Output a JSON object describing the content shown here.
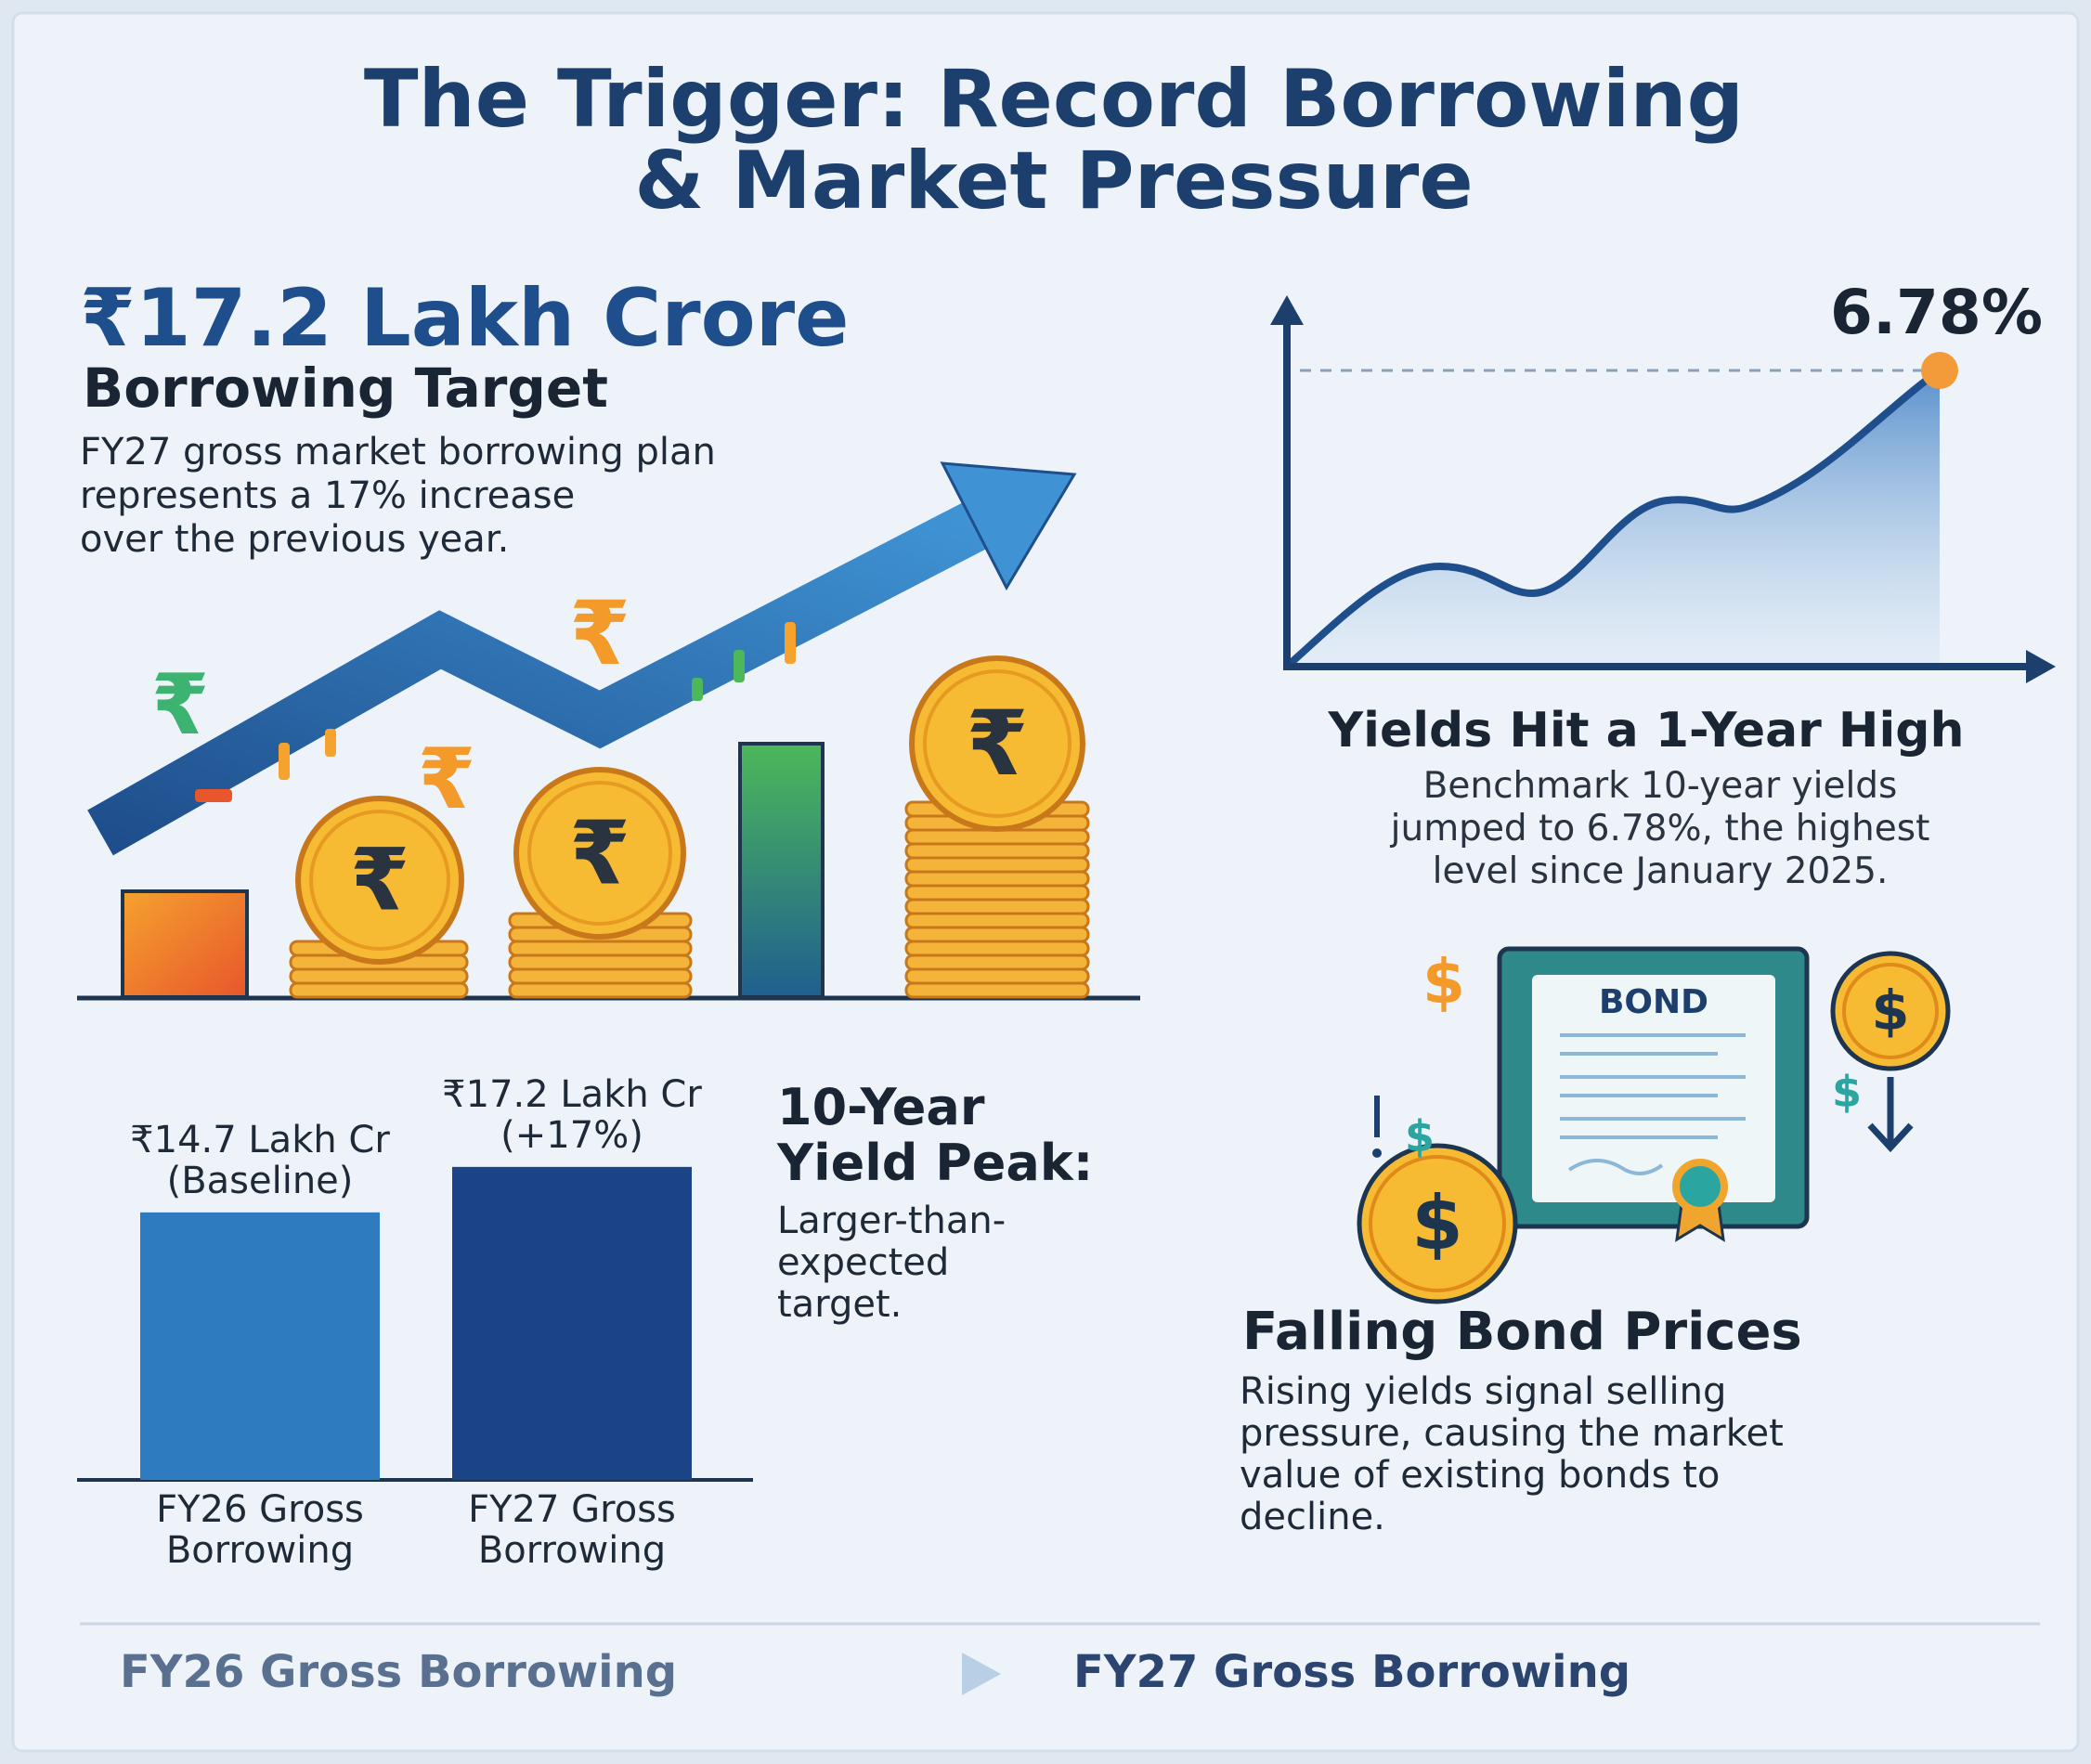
{
  "title_lines": [
    "The Trigger: Record Borrowing",
    "& Market Pressure"
  ],
  "target": {
    "amount": "₹17.2 Lakh Crore",
    "label": "Borrowing Target",
    "text_lines": [
      "FY27 gross market borrowing plan",
      "represents a 17% increase",
      "over the previous year."
    ]
  },
  "icon_symbols": {
    "rupee": "₹",
    "dollar": "$"
  },
  "yield_chart": {
    "peak": {
      "value": 6.78,
      "label": "6.78%"
    },
    "title": "Yields Hit a 1-Year High",
    "text_lines": [
      "Benchmark 10-year yields",
      "jumped to 6.78%, the highest",
      "level since January 2025."
    ]
  },
  "chart_data": {
    "type": "bar",
    "categories": [
      "FY26 Gross Borrowing",
      "FY27 Gross Borrowing"
    ],
    "values": [
      14.7,
      17.2
    ],
    "value_labels": [
      "₹14.7 Lakh Cr (Baseline)",
      "₹17.2 Lakh Cr (+17%)"
    ],
    "colors": [
      "#2e7bbf",
      "#1b4487"
    ]
  },
  "callout": {
    "title_lines": [
      "10-Year",
      "Yield Peak:"
    ],
    "text_lines": [
      "Larger-than-",
      "expected",
      "target."
    ]
  },
  "bond": {
    "badge": "BOND",
    "title": "Falling Bond Prices",
    "text_lines": [
      "Rising yields signal selling",
      "pressure, causing the market",
      "value of existing bonds to",
      "decline."
    ]
  },
  "footer": {
    "from": "FY26 Gross Borrowing",
    "to": "FY27 Gross Borrowing"
  }
}
